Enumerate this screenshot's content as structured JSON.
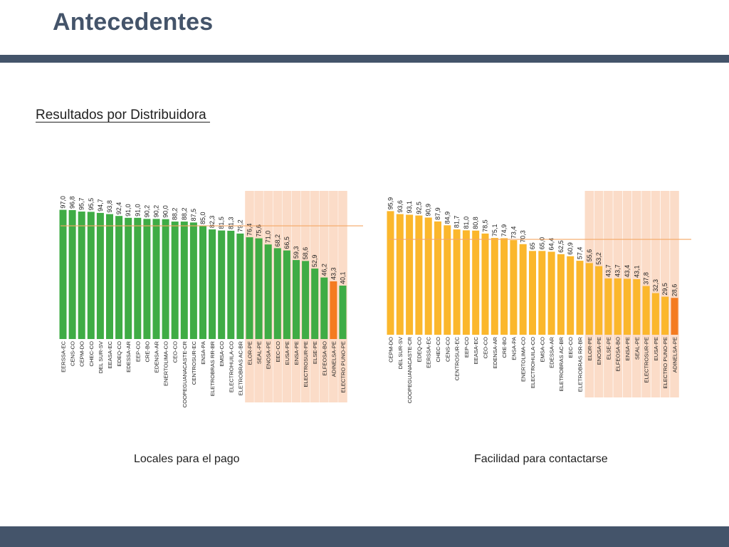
{
  "slide": {
    "title": "Antecedentes",
    "subtitle": "Resultados por Distribuidora "
  },
  "colors": {
    "title_text": "#44546a",
    "bars_dark": "#44546a",
    "green_bar": "#3fac45",
    "yellow_bar": "#fbb72c",
    "highlight_bar": "#f47b20",
    "reference_line": "#f4a766",
    "highlight_band": "#fbdcc8"
  },
  "chart_data": [
    {
      "type": "bar",
      "caption": "Locales para el pago",
      "categories": [
        "EERSSA-EC",
        "CENS-CO",
        "CEPM-DO",
        "CHEC-CO",
        "DEL SUR-SV",
        "EEASA-EC",
        "EDEQ-CO",
        "EDESSA-AR",
        "EEP-CO",
        "CRE-BO",
        "EDENSA-AR",
        "ENERTOLIMA-CO",
        "CEO-CO",
        "COOPEGUANACASTE-CR",
        "CENTROSUR-EC",
        "ENSA-PA",
        "ELETROBRAS RR-BR",
        "EMSA-CO",
        "ELECTROHUILA-CO",
        "ELETROBRAS AC-BR",
        "ELOR-PE",
        "SEAL-PE",
        "ENOSA-PE",
        "EEC-CO",
        "EUSA-PE",
        "ENSA-PE",
        "ELECTROSUR-PE",
        "ELSE-PE",
        "ELFEOSA-BO",
        "ADINELSA-PE",
        "ELECTRO PUNO-PE"
      ],
      "values": [
        97.0,
        96.8,
        95.7,
        95.5,
        94.7,
        93.8,
        92.4,
        91.0,
        91.0,
        90.2,
        90.2,
        90.0,
        88.2,
        88.2,
        87.5,
        85.0,
        82.3,
        81.5,
        81.3,
        79.2,
        76.4,
        75.6,
        71.0,
        68.2,
        66.5,
        59.3,
        58.6,
        52.9,
        46.2,
        43.3,
        40.1
      ],
      "value_labels": [
        "97,0",
        "96,8",
        "95,7",
        "95,5",
        "94,7",
        "93,8",
        "92,4",
        "91,0",
        "91,0",
        "90,2",
        "90,2",
        "90,0",
        "88,2",
        "88,2",
        "87,5",
        "85,0",
        "82,3",
        "81,5",
        "81,3",
        "79,2",
        "76,4",
        "75,6",
        "71,0",
        "68,2",
        "66,5",
        "59,3",
        "58,6",
        "52,9",
        "46,2",
        "43,3",
        "40,1"
      ],
      "highlighted_from_index": 20,
      "accent_index": 29,
      "reference_value": 85.0,
      "ylim": [
        0,
        100
      ]
    },
    {
      "type": "bar",
      "caption": "Facilidad para contactarse",
      "categories": [
        "CEPM-DO",
        "DEL SUR-SV",
        "COOPEGUANACASTE-CR",
        "EDEQ-CO",
        "EERSSA-EC",
        "CHEC-CO",
        "CENS-CO",
        "CENTROSUR-EC",
        "EEP-CO",
        "EEASA-EC",
        "CEO-CO",
        "EDENSA-AR",
        "CRE-BO",
        "ENSA-PA",
        "ENERTOLIMA-CO",
        "ELECTROHUILA-CO",
        "EMSA-CO",
        "EDESSA-AR",
        "ELETROBRAS AC-BR",
        "EEC-CO",
        "ELETROBRAS RR-BR",
        "ELOR-PE",
        "ENOSA-PE",
        "ELSE-PE",
        "ELFEOSA-BO",
        "ENSA-PE",
        "SEAL-PE",
        "ELECTROSUR-PE",
        "EUSA-PE",
        "ELECTRO PUNO-PE",
        "ADINELSA-PE"
      ],
      "values": [
        95.9,
        93.6,
        93.1,
        92.5,
        90.9,
        87.9,
        84.9,
        81.7,
        81.0,
        80.8,
        78.5,
        75.1,
        74.9,
        73.4,
        70.3,
        65.0,
        65.0,
        64.4,
        62.5,
        60.9,
        57.4,
        55.6,
        53.2,
        43.7,
        43.7,
        43.4,
        43.1,
        37.8,
        32.3,
        29.5,
        28.6
      ],
      "value_labels": [
        "95,9",
        "93,6",
        "93,1",
        "92,5",
        "90,9",
        "87,9",
        "84,9",
        "81,7",
        "81,0",
        "80,8",
        "78,5",
        "75,1",
        "74,9",
        "73,4",
        "70,3",
        "65",
        "65,0",
        "64,4",
        "62,5",
        "60,9",
        "57,4",
        "55,6",
        "53,2",
        "43,7",
        "43,7",
        "43,4",
        "43,1",
        "37,8",
        "32,3",
        "29,5",
        "28,6"
      ],
      "highlighted_from_index": 21,
      "accent_index": 30,
      "reference_value": 74.0,
      "ylim": [
        0,
        100
      ]
    }
  ]
}
